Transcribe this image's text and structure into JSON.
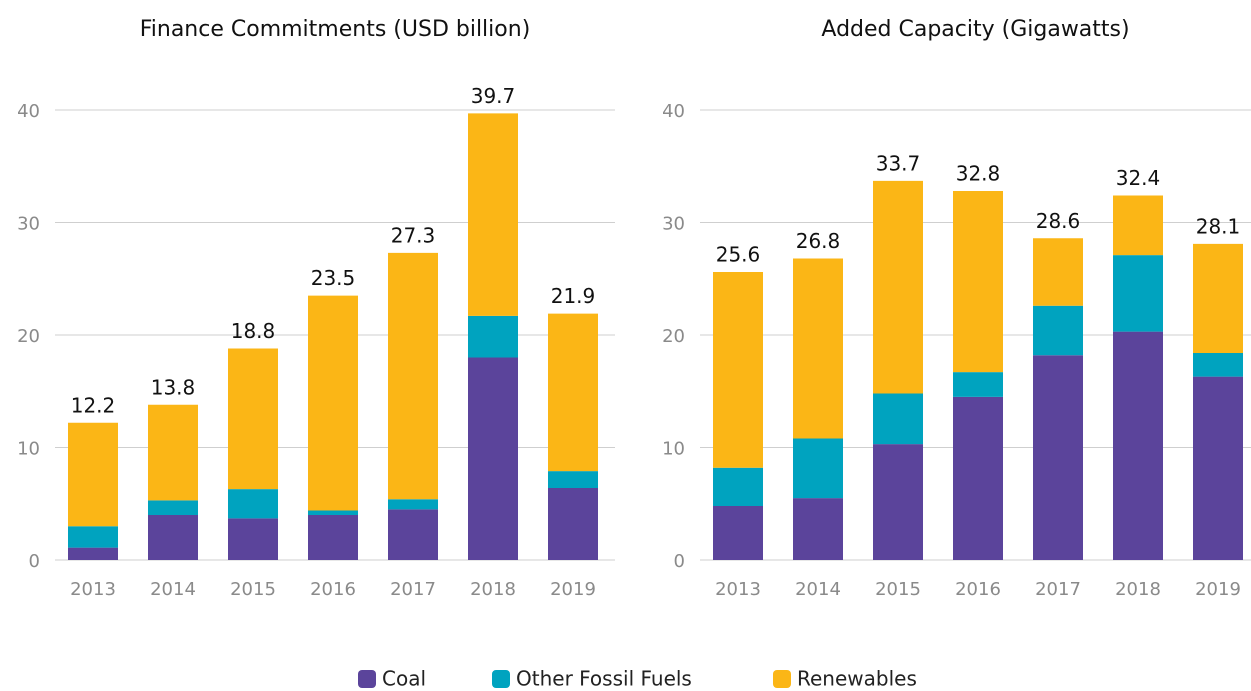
{
  "chart_data": [
    {
      "type": "stacked_bar",
      "title": "Finance Commitments (USD billion)",
      "categories": [
        "2013",
        "2014",
        "2015",
        "2016",
        "2017",
        "2018",
        "2019"
      ],
      "series": [
        {
          "name": "Coal",
          "color": "#5b449b",
          "values": [
            1.1,
            4.0,
            3.7,
            4.0,
            4.5,
            18.0,
            6.4
          ]
        },
        {
          "name": "Other Fossil Fuels",
          "color": "#00a3bf",
          "values": [
            1.9,
            1.3,
            2.6,
            0.4,
            0.9,
            3.7,
            1.5
          ]
        },
        {
          "name": "Renewables",
          "color": "#fbb616",
          "values": [
            9.2,
            8.5,
            12.5,
            19.1,
            21.9,
            18.0,
            14.0
          ]
        }
      ],
      "totals": [
        12.2,
        13.8,
        18.8,
        23.5,
        27.3,
        39.7,
        21.9
      ],
      "ylim": [
        0,
        40
      ],
      "yticks": [
        0,
        10,
        20,
        30,
        40
      ],
      "grid": true
    },
    {
      "type": "stacked_bar",
      "title": "Added Capacity (Gigawatts)",
      "categories": [
        "2013",
        "2014",
        "2015",
        "2016",
        "2017",
        "2018",
        "2019"
      ],
      "series": [
        {
          "name": "Coal",
          "color": "#5b449b",
          "values": [
            4.8,
            5.5,
            10.3,
            14.5,
            18.2,
            20.3,
            16.3
          ]
        },
        {
          "name": "Other Fossil Fuels",
          "color": "#00a3bf",
          "values": [
            3.4,
            5.3,
            4.5,
            2.2,
            4.4,
            6.8,
            2.1
          ]
        },
        {
          "name": "Renewables",
          "color": "#fbb616",
          "values": [
            17.4,
            16.0,
            18.9,
            16.1,
            6.0,
            5.3,
            9.7
          ]
        }
      ],
      "totals": [
        25.6,
        26.8,
        33.7,
        32.8,
        28.6,
        32.4,
        28.1
      ],
      "ylim": [
        0,
        40
      ],
      "yticks": [
        0,
        10,
        20,
        30,
        40
      ],
      "grid": true
    }
  ]
}
